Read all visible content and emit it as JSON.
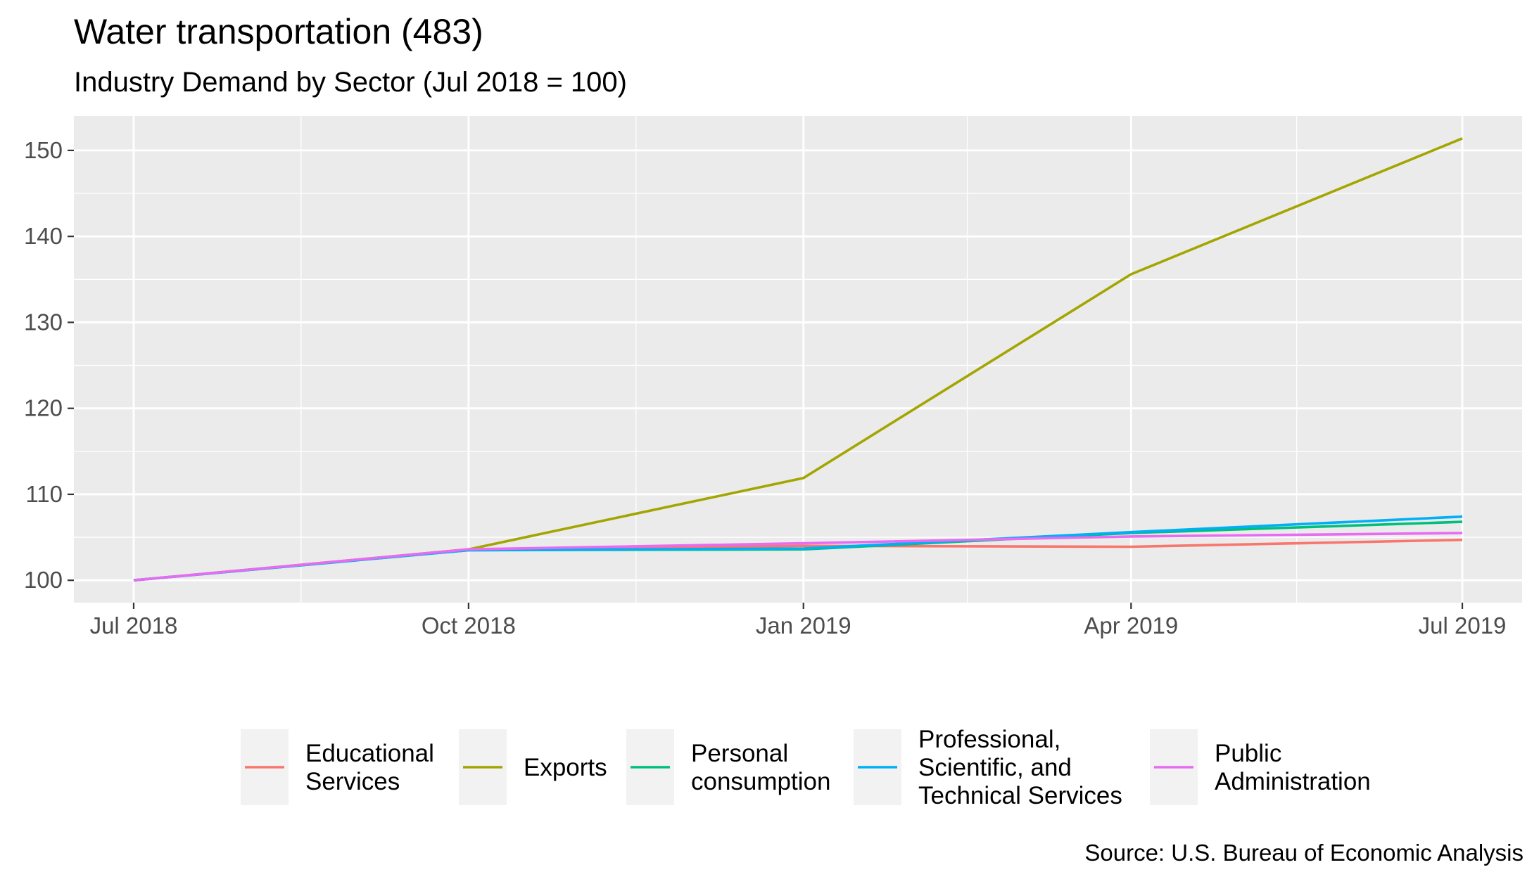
{
  "chart_data": {
    "type": "line",
    "title": "Water transportation (483)",
    "subtitle": "Industry Demand by Sector (Jul 2018 = 100)",
    "caption": "Source: U.S. Bureau of Economic Analysis",
    "xlabel": "",
    "ylabel": "",
    "x": [
      "2018-07-01",
      "2018-10-01",
      "2019-01-01",
      "2019-04-01",
      "2019-07-01"
    ],
    "x_tick_labels": [
      "Jul 2018",
      "Oct 2018",
      "Jan 2019",
      "Apr 2019",
      "Jul 2019"
    ],
    "y_ticks": [
      100,
      110,
      120,
      130,
      140,
      150
    ],
    "ylim": [
      97.4,
      154.0
    ],
    "grid": true,
    "legend_position": "bottom",
    "series": [
      {
        "name": "Educational\nServices",
        "color": "#F8766D",
        "values": [
          100,
          103.6,
          104.0,
          103.9,
          104.7
        ]
      },
      {
        "name": "Exports",
        "color": "#A3A500",
        "values": [
          100,
          103.6,
          111.9,
          135.6,
          151.4
        ]
      },
      {
        "name": "Personal\nconsumption",
        "color": "#00BF7D",
        "values": [
          100,
          103.5,
          103.6,
          105.5,
          106.8
        ]
      },
      {
        "name": "Professional,\nScientific, and\nTechnical Services",
        "color": "#00B0F6",
        "values": [
          100,
          103.5,
          103.7,
          105.6,
          107.4
        ]
      },
      {
        "name": "Public\nAdministration",
        "color": "#E76BF3",
        "values": [
          100,
          103.6,
          104.3,
          105.1,
          105.5
        ]
      }
    ]
  }
}
